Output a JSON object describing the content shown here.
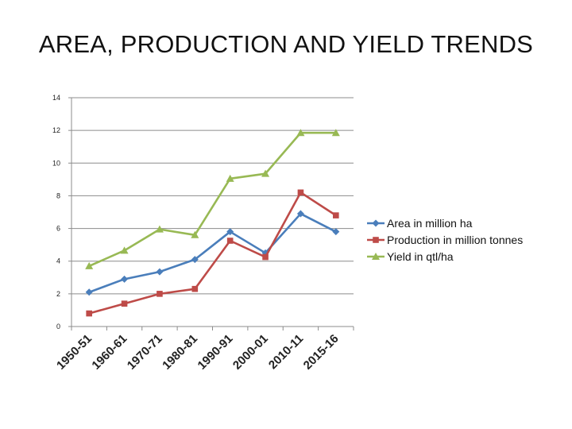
{
  "chart_data": {
    "type": "line",
    "title": "AREA, PRODUCTION AND YIELD TRENDS",
    "xlabel": "",
    "ylabel": "",
    "ylim": [
      0,
      14
    ],
    "yticks": [
      0,
      2,
      4,
      6,
      8,
      10,
      12,
      14
    ],
    "grid": true,
    "legend": "right",
    "categories": [
      "1950-51",
      "1960-61",
      "1970-71",
      "1980-81",
      "1990-91",
      "2000-01",
      "2010-11",
      "2015-16"
    ],
    "series": [
      {
        "name": "Area in million ha",
        "color": "#4a7ebb",
        "marker": "diamond",
        "values": [
          2.1,
          2.9,
          3.35,
          4.1,
          5.8,
          4.5,
          6.9,
          5.8
        ]
      },
      {
        "name": "Production in million tonnes",
        "color": "#be4b48",
        "marker": "square",
        "values": [
          0.8,
          1.4,
          2.0,
          2.3,
          5.25,
          4.25,
          8.2,
          6.8
        ]
      },
      {
        "name": "Yield  in qtl/ha",
        "color": "#98b954",
        "marker": "triangle",
        "values": [
          3.7,
          4.65,
          5.95,
          5.6,
          9.05,
          9.35,
          11.85,
          11.85
        ]
      }
    ]
  }
}
